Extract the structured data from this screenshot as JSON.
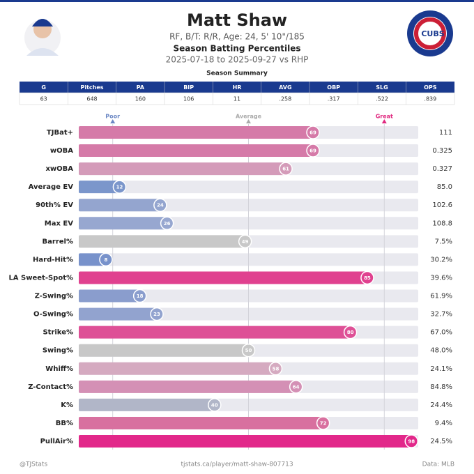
{
  "header": {
    "title": "Matt Shaw",
    "subtitle": "RF, B/T: R/R, Age: 24, 5' 10\"/185",
    "heading": "Season Batting Percentiles",
    "dates": "2025-07-18 to 2025-09-27 vs RHP",
    "logo_text": "CUBS"
  },
  "table": {
    "title": "Season Summary",
    "columns": [
      "G",
      "Pitches",
      "PA",
      "BIP",
      "HR",
      "AVG",
      "OBP",
      "SLG",
      "OPS"
    ],
    "rows": [
      [
        "63",
        "648",
        "160",
        "106",
        "11",
        ".258",
        ".317",
        ".522",
        ".839"
      ]
    ]
  },
  "chart_data": {
    "type": "bar",
    "orientation": "horizontal",
    "categories": [
      "TJBat+",
      "wOBA",
      "xwOBA",
      "Average EV",
      "90th% EV",
      "Max EV",
      "Barrel%",
      "Hard-Hit%",
      "LA Sweet-Spot%",
      "Z-Swing%",
      "O-Swing%",
      "Strike%",
      "Swing%",
      "Whiff%",
      "Z-Contact%",
      "K%",
      "BB%",
      "PullAir%"
    ],
    "values": [
      69,
      69,
      61,
      12,
      24,
      26,
      49,
      8,
      85,
      18,
      23,
      80,
      50,
      58,
      64,
      40,
      72,
      98
    ],
    "colors": [
      "#d57aa8",
      "#d57aa8",
      "#d49bb9",
      "#7b96cb",
      "#94a5cf",
      "#97a7d0",
      "#c8c8c8",
      "#7892cb",
      "#e0418f",
      "#8a9dcd",
      "#92a3cf",
      "#de5096",
      "#c8c8c8",
      "#d5aac0",
      "#d490b5",
      "#b1b6c8",
      "#d8709f",
      "#e2288a"
    ],
    "stats": [
      "111",
      "0.325",
      "0.327",
      "85.0",
      "102.6",
      "108.8",
      "7.5%",
      "30.2%",
      "39.6%",
      "61.9%",
      "32.7%",
      "67.0%",
      "48.0%",
      "24.1%",
      "84.8%",
      "24.4%",
      "9.4%",
      "24.5%"
    ],
    "xlim": [
      0,
      100
    ],
    "xticks": [
      {
        "value": 10,
        "label": "Poor"
      },
      {
        "value": 50,
        "label": "Average"
      },
      {
        "value": 90,
        "label": "Great"
      }
    ],
    "xtick_colors": [
      "#6b87c4",
      "#aaaaaa",
      "#e0287f"
    ]
  },
  "footer": {
    "left": "@TJStats",
    "center": "tjstats.ca/player/matt-shaw-807713",
    "right": "Data: MLB"
  }
}
